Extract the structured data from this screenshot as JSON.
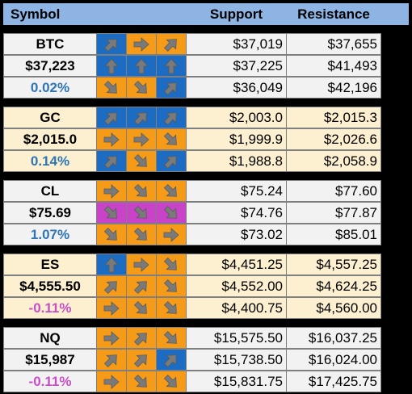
{
  "header": {
    "symbol": "Symbol",
    "support": "Support",
    "resistance": "Resistance"
  },
  "colors": {
    "up": "#1b6cc2",
    "flat": "#f59b18",
    "down": "#f59b18",
    "down_strong": "#c943c9",
    "arrow": "#7a7a7a",
    "pct_up": "#2e75b6",
    "pct_down": "#c64fc8"
  },
  "groups": [
    {
      "bg": "w",
      "rows": [
        {
          "label": "BTC",
          "kind": "name",
          "arrows": [
            [
              "up-right",
              "blue"
            ],
            [
              "right",
              "orange"
            ],
            [
              "up-right",
              "orange"
            ]
          ],
          "support": "$37,019",
          "resistance": "$37,655"
        },
        {
          "label": "$37,223",
          "kind": "price",
          "arrows": [
            [
              "up",
              "blue"
            ],
            [
              "up",
              "blue"
            ],
            [
              "up",
              "blue"
            ]
          ],
          "support": "$37,225",
          "resistance": "$41,493"
        },
        {
          "label": "0.02%",
          "kind": "pct-blue",
          "arrows": [
            [
              "down-right",
              "orange"
            ],
            [
              "down-right",
              "orange"
            ],
            [
              "up-right",
              "blue"
            ]
          ],
          "support": "$36,049",
          "resistance": "$42,196"
        }
      ]
    },
    {
      "bg": "p",
      "rows": [
        {
          "label": "GC",
          "kind": "name",
          "arrows": [
            [
              "up-right",
              "blue"
            ],
            [
              "up-right",
              "blue"
            ],
            [
              "up-right",
              "blue"
            ]
          ],
          "support": "$2,003.0",
          "resistance": "$2,015.3"
        },
        {
          "label": "$2,015.0",
          "kind": "price",
          "arrows": [
            [
              "right",
              "orange"
            ],
            [
              "right",
              "orange"
            ],
            [
              "down-right",
              "orange"
            ]
          ],
          "support": "$1,999.9",
          "resistance": "$2,026.6"
        },
        {
          "label": "0.14%",
          "kind": "pct-blue",
          "arrows": [
            [
              "up-right",
              "blue"
            ],
            [
              "down-right",
              "orange"
            ],
            [
              "up-right",
              "blue"
            ]
          ],
          "support": "$1,988.8",
          "resistance": "$2,058.9"
        }
      ]
    },
    {
      "bg": "w",
      "rows": [
        {
          "label": "CL",
          "kind": "name",
          "arrows": [
            [
              "right",
              "orange"
            ],
            [
              "down-right",
              "orange"
            ],
            [
              "down-right",
              "orange"
            ]
          ],
          "support": "$75.24",
          "resistance": "$77.60"
        },
        {
          "label": "$75.69",
          "kind": "price",
          "arrows": [
            [
              "down-right",
              "magenta"
            ],
            [
              "down-right",
              "magenta"
            ],
            [
              "down-right",
              "magenta"
            ]
          ],
          "support": "$74.76",
          "resistance": "$77.87"
        },
        {
          "label": "1.07%",
          "kind": "pct-blue",
          "arrows": [
            [
              "down-right",
              "orange"
            ],
            [
              "down-right",
              "orange"
            ],
            [
              "right",
              "orange"
            ]
          ],
          "support": "$73.02",
          "resistance": "$85.01"
        }
      ]
    },
    {
      "bg": "p",
      "rows": [
        {
          "label": "ES",
          "kind": "name",
          "arrows": [
            [
              "up",
              "blue"
            ],
            [
              "right",
              "orange"
            ],
            [
              "down-right",
              "orange"
            ]
          ],
          "support": "$4,451.25",
          "resistance": "$4,557.25"
        },
        {
          "label": "$4,555.50",
          "kind": "price",
          "arrows": [
            [
              "up-right",
              "orange"
            ],
            [
              "up-right",
              "orange"
            ],
            [
              "down-right",
              "orange"
            ]
          ],
          "support": "$4,552.00",
          "resistance": "$4,624.25"
        },
        {
          "label": "-0.11%",
          "kind": "pct-mag",
          "arrows": [
            [
              "right",
              "orange"
            ],
            [
              "down-right",
              "orange"
            ],
            [
              "down-right",
              "orange"
            ]
          ],
          "support": "$4,400.75",
          "resistance": "$4,560.00"
        }
      ]
    },
    {
      "bg": "w",
      "rows": [
        {
          "label": "NQ",
          "kind": "name",
          "arrows": [
            [
              "right",
              "orange"
            ],
            [
              "up-right",
              "orange"
            ],
            [
              "down-right",
              "orange"
            ]
          ],
          "support": "$15,575.50",
          "resistance": "$16,037.25"
        },
        {
          "label": "$15,987",
          "kind": "price",
          "arrows": [
            [
              "up-right",
              "orange"
            ],
            [
              "up-right",
              "orange"
            ],
            [
              "up-right",
              "blue"
            ]
          ],
          "support": "$15,738.50",
          "resistance": "$16,024.00"
        },
        {
          "label": "-0.11%",
          "kind": "pct-mag",
          "arrows": [
            [
              "right",
              "orange"
            ],
            [
              "down-right",
              "orange"
            ],
            [
              "down-right",
              "orange"
            ]
          ],
          "support": "$15,831.75",
          "resistance": "$17,425.75"
        }
      ]
    }
  ]
}
